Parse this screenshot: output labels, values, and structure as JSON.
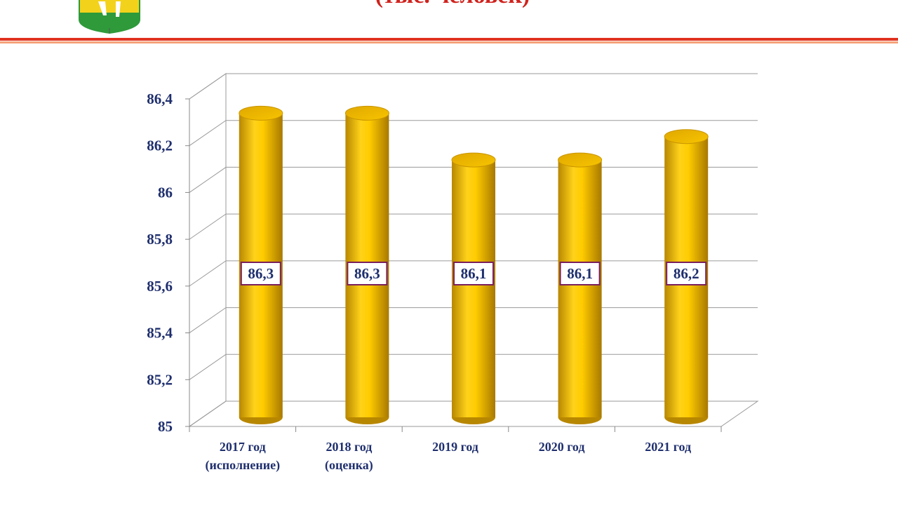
{
  "chart_data": {
    "type": "bar",
    "title": "(тыс. человек)",
    "categories": [
      "2017 год\n(исполнение)",
      "2018 год\n(оценка)",
      "2019 год",
      "2020 год",
      "2021 год"
    ],
    "values": [
      86.3,
      86.3,
      86.1,
      86.1,
      86.2
    ],
    "value_labels": [
      "86,3",
      "86,3",
      "86,1",
      "86,1",
      "86,2"
    ],
    "color": "#f5c000",
    "ylim": [
      85,
      86.4
    ],
    "yticks": [
      85,
      {
        "value": 85.2,
        "label": "85,2"
      },
      {
        "value": 85.4,
        "label": "85,4"
      },
      {
        "value": 85.6,
        "label": "85,6"
      },
      {
        "value": 85.8,
        "label": "85,8"
      },
      86,
      {
        "value": 86.2,
        "label": "86,2"
      },
      {
        "value": 86.4,
        "label": "86,4"
      }
    ],
    "grid": true
  }
}
